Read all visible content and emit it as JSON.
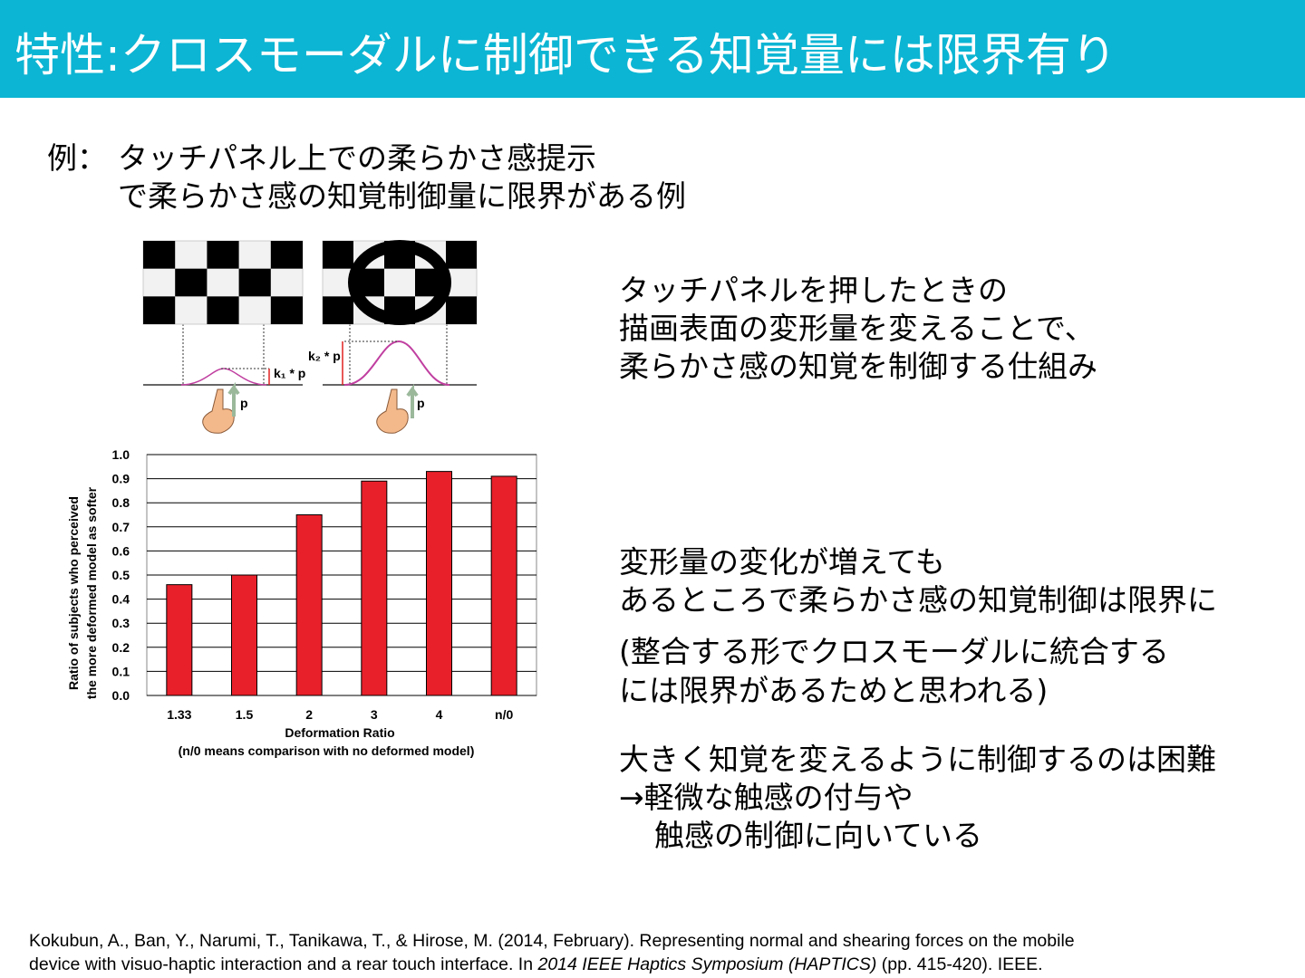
{
  "header": {
    "title": "特性:クロスモーダルに制御できる知覚量には限界有り"
  },
  "example": {
    "marker": "例：",
    "lines": [
      "タッチパネル上での柔らかさ感提示",
      "で柔らかさ感の知覚制御量に限界がある例"
    ]
  },
  "figure": {
    "labels": [
      "k₁ * p",
      "k₂ * p",
      "p",
      "p"
    ]
  },
  "body": {
    "blocks": [
      [
        "タッチパネルを押したときの",
        "描画表面の変形量を変えることで、",
        "柔らかさ感の知覚を制御する仕組み"
      ],
      [
        "変形量の変化が増えても",
        "あるところで柔らかさ感の知覚制御は限界に"
      ],
      [
        "(整合する形でクロスモーダルに統合する",
        "には限界があるためと思われる)"
      ],
      [
        "大きく知覚を変えるように制御するのは困難",
        "→軽微な触感の付与や",
        "触感の制御に向いている"
      ]
    ]
  },
  "citation": {
    "line1": "Kokubun, A., Ban, Y., Narumi, T., Tanikawa, T., & Hirose, M. (2014, February). Representing normal and shearing forces on the mobile",
    "line2": [
      "device with visuo-haptic interaction and a rear touch interface. In ",
      "2014 IEEE Haptics Symposium (HAPTICS)",
      " (pp. 415-420). IEEE."
    ]
  },
  "chart_data": {
    "type": "bar",
    "y_label": [
      "Ratio of subjects who perceived",
      "the more deformed model as softer"
    ],
    "x_label": "Deformation Ratio",
    "x_note": "(n/0 means comparison with no deformed model)",
    "categories": [
      "1.33",
      "1.5",
      "2",
      "3",
      "4",
      "n/0"
    ],
    "values": [
      0.46,
      0.5,
      0.75,
      0.89,
      0.93,
      0.91
    ],
    "color": "#e8202a",
    "ylim": [
      0,
      1
    ],
    "yticks": [
      {
        "value": 0,
        "label": "0.0"
      },
      0.1,
      0.2,
      0.3,
      0.4,
      0.5,
      0.6,
      0.7,
      0.8,
      0.9,
      {
        "value": 1,
        "label": "1.0"
      }
    ],
    "grid": true
  }
}
